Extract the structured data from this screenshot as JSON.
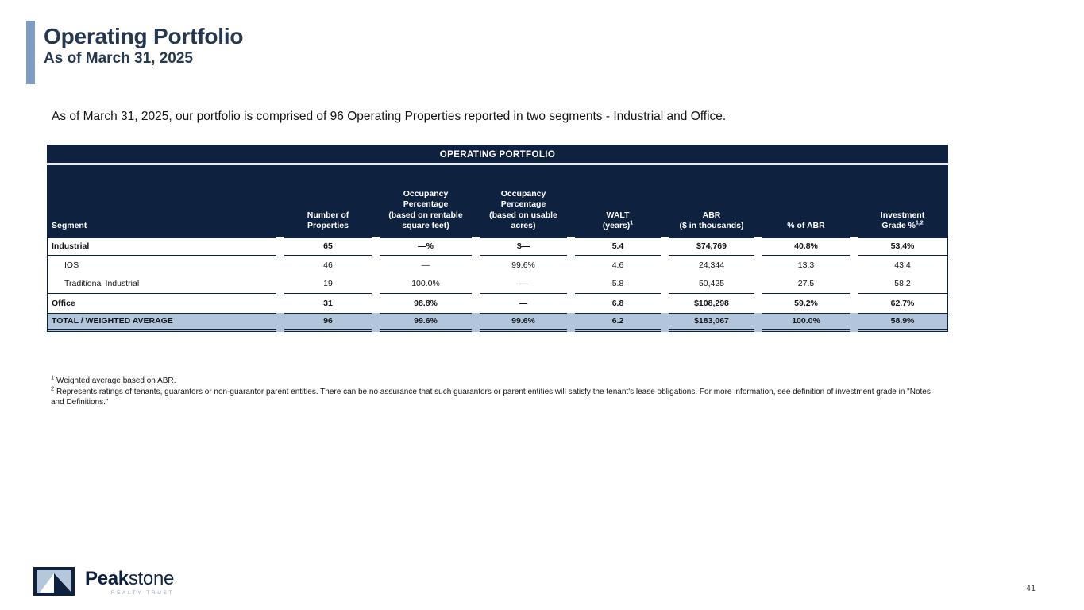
{
  "colors": {
    "navy": "#0e2240",
    "accent_bar": "#7f9cc2",
    "total_row_bg": "#b3c5da",
    "logo_field": "#b5c7da",
    "realty_gray": "#93a7c2"
  },
  "slide": {
    "title": "Operating Portfolio",
    "subtitle": "As of March 31, 2025",
    "intro": "As of March 31, 2025, our portfolio is comprised of 96 Operating Properties reported in two segments - Industrial and Office.",
    "page_number": "41"
  },
  "table": {
    "title": "OPERATING PORTFOLIO",
    "columns": [
      {
        "lines": [
          "Segment"
        ],
        "sup": ""
      },
      {
        "lines": [
          "Number of",
          "Properties"
        ],
        "sup": ""
      },
      {
        "lines": [
          "Occupancy",
          "Percentage",
          "(based on rentable",
          "square feet)"
        ],
        "sup": ""
      },
      {
        "lines": [
          "Occupancy",
          "Percentage",
          "(based on usable",
          "acres)"
        ],
        "sup": ""
      },
      {
        "lines": [
          "WALT",
          "(years)"
        ],
        "sup": "1"
      },
      {
        "lines": [
          "ABR",
          "($ in thousands)"
        ],
        "sup": ""
      },
      {
        "lines": [
          "% of ABR"
        ],
        "sup": ""
      },
      {
        "lines": [
          "Investment",
          "Grade %"
        ],
        "sup": "1,2"
      }
    ],
    "rows": [
      {
        "segment": "Industrial",
        "indent": false,
        "bold": true,
        "border_bottom": true,
        "values": [
          "65",
          "—%",
          "$—",
          "5.4",
          "$74,769",
          "40.8%",
          "53.4%"
        ]
      },
      {
        "segment": "IOS",
        "indent": true,
        "bold": false,
        "border_bottom": false,
        "values": [
          "46",
          "—",
          "99.6%",
          "4.6",
          "24,344",
          "13.3",
          "43.4"
        ]
      },
      {
        "segment": "Traditional Industrial",
        "indent": true,
        "bold": false,
        "border_bottom": true,
        "values": [
          "19",
          "100.0%",
          "—",
          "5.8",
          "50,425",
          "27.5",
          "58.2"
        ]
      },
      {
        "segment": "Office",
        "indent": false,
        "bold": true,
        "border_bottom": false,
        "values": [
          "31",
          "98.8%",
          "—",
          "6.8",
          "$108,298",
          "59.2%",
          "62.7%"
        ]
      }
    ],
    "total_row": {
      "segment": "TOTAL / WEIGHTED AVERAGE",
      "values": [
        "96",
        "99.6%",
        "99.6%",
        "6.2",
        "$183,067",
        "100.0%",
        "58.9%"
      ]
    }
  },
  "footnotes": [
    {
      "sup": "1",
      "text": "Weighted average based on ABR."
    },
    {
      "sup": "2",
      "text": "Represents ratings of tenants, guarantors or non-guarantor parent entities. There can be no assurance that such guarantors or parent entities will satisfy the tenant's lease obligations. For more information, see definition of investment grade in \"Notes and Definitions.\""
    }
  ],
  "logo": {
    "brand_bold": "Peak",
    "brand_light": "stone",
    "brand_sub": "REALTY TRUST",
    "mark": "mountain-logo-icon"
  }
}
